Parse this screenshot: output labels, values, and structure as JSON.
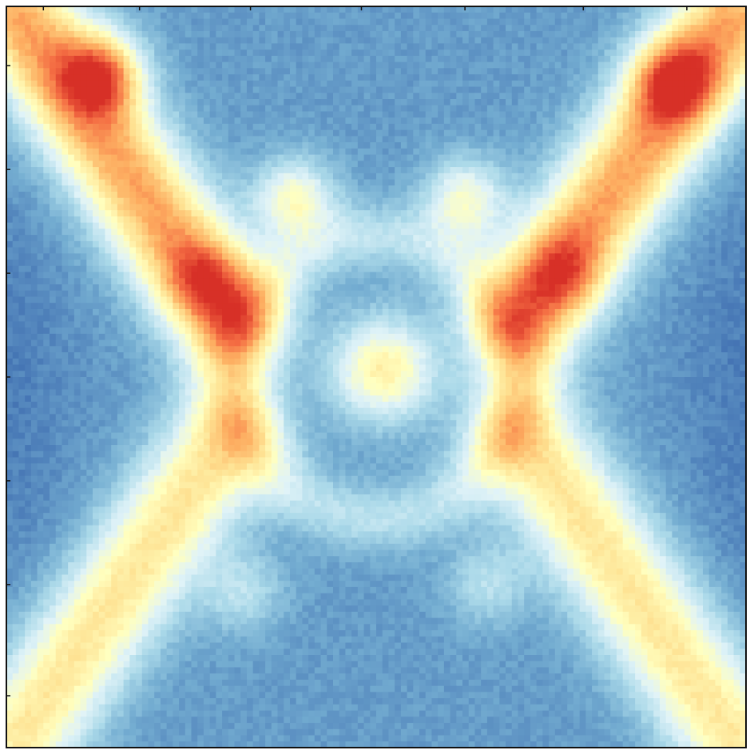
{
  "chart_data": {
    "type": "heatmap",
    "title": "",
    "xlabel": "",
    "ylabel": "",
    "tick_labels_shown": false,
    "colormap": [
      "#313695",
      "#4575b4",
      "#74add1",
      "#abd9e9",
      "#e0f3f8",
      "#ffffbf",
      "#fee090",
      "#fdae61",
      "#f46d43",
      "#d73027"
    ],
    "description_of_pattern": "",
    "rows": 120,
    "cols": 120,
    "features": [
      {
        "kind": "background",
        "value": 0.12
      },
      {
        "kind": "ring",
        "cx": 0.5,
        "cy": 0.5,
        "r": 0.19,
        "width": 0.045,
        "value": 0.18
      },
      {
        "kind": "center-spot",
        "cx": 0.51,
        "cy": 0.49,
        "r": 0.07,
        "value": 0.42
      },
      {
        "kind": "arm",
        "from": [
          0.02,
          0.02
        ],
        "to": [
          0.3,
          0.42
        ],
        "value": 0.6
      },
      {
        "kind": "arm",
        "from": [
          0.98,
          0.02
        ],
        "to": [
          0.7,
          0.42
        ],
        "value": 0.6
      },
      {
        "kind": "arm",
        "from": [
          0.3,
          0.58
        ],
        "to": [
          0.02,
          0.98
        ],
        "value": 0.45
      },
      {
        "kind": "arm",
        "from": [
          0.7,
          0.58
        ],
        "to": [
          0.98,
          0.98
        ],
        "value": 0.45
      },
      {
        "kind": "hot",
        "cx": 0.13,
        "cy": 0.09,
        "value": 0.92
      },
      {
        "kind": "hot",
        "cx": 0.9,
        "cy": 0.1,
        "value": 0.85
      },
      {
        "kind": "hot",
        "cx": 0.39,
        "cy": 0.26,
        "value": 0.8
      },
      {
        "kind": "hot",
        "cx": 0.62,
        "cy": 0.26,
        "value": 0.78
      },
      {
        "kind": "hot",
        "cx": 0.27,
        "cy": 0.37,
        "value": 0.7
      },
      {
        "kind": "hot",
        "cx": 0.75,
        "cy": 0.36,
        "value": 0.7
      },
      {
        "kind": "hot",
        "cx": 0.32,
        "cy": 0.79,
        "value": 0.62
      },
      {
        "kind": "hot",
        "cx": 0.65,
        "cy": 0.78,
        "value": 0.62
      }
    ],
    "ticks": {
      "x": [
        0.05,
        0.18,
        0.33,
        0.48,
        0.62,
        0.78,
        0.92
      ],
      "y": [
        0.08,
        0.22,
        0.36,
        0.5,
        0.64,
        0.78,
        0.93
      ]
    }
  }
}
